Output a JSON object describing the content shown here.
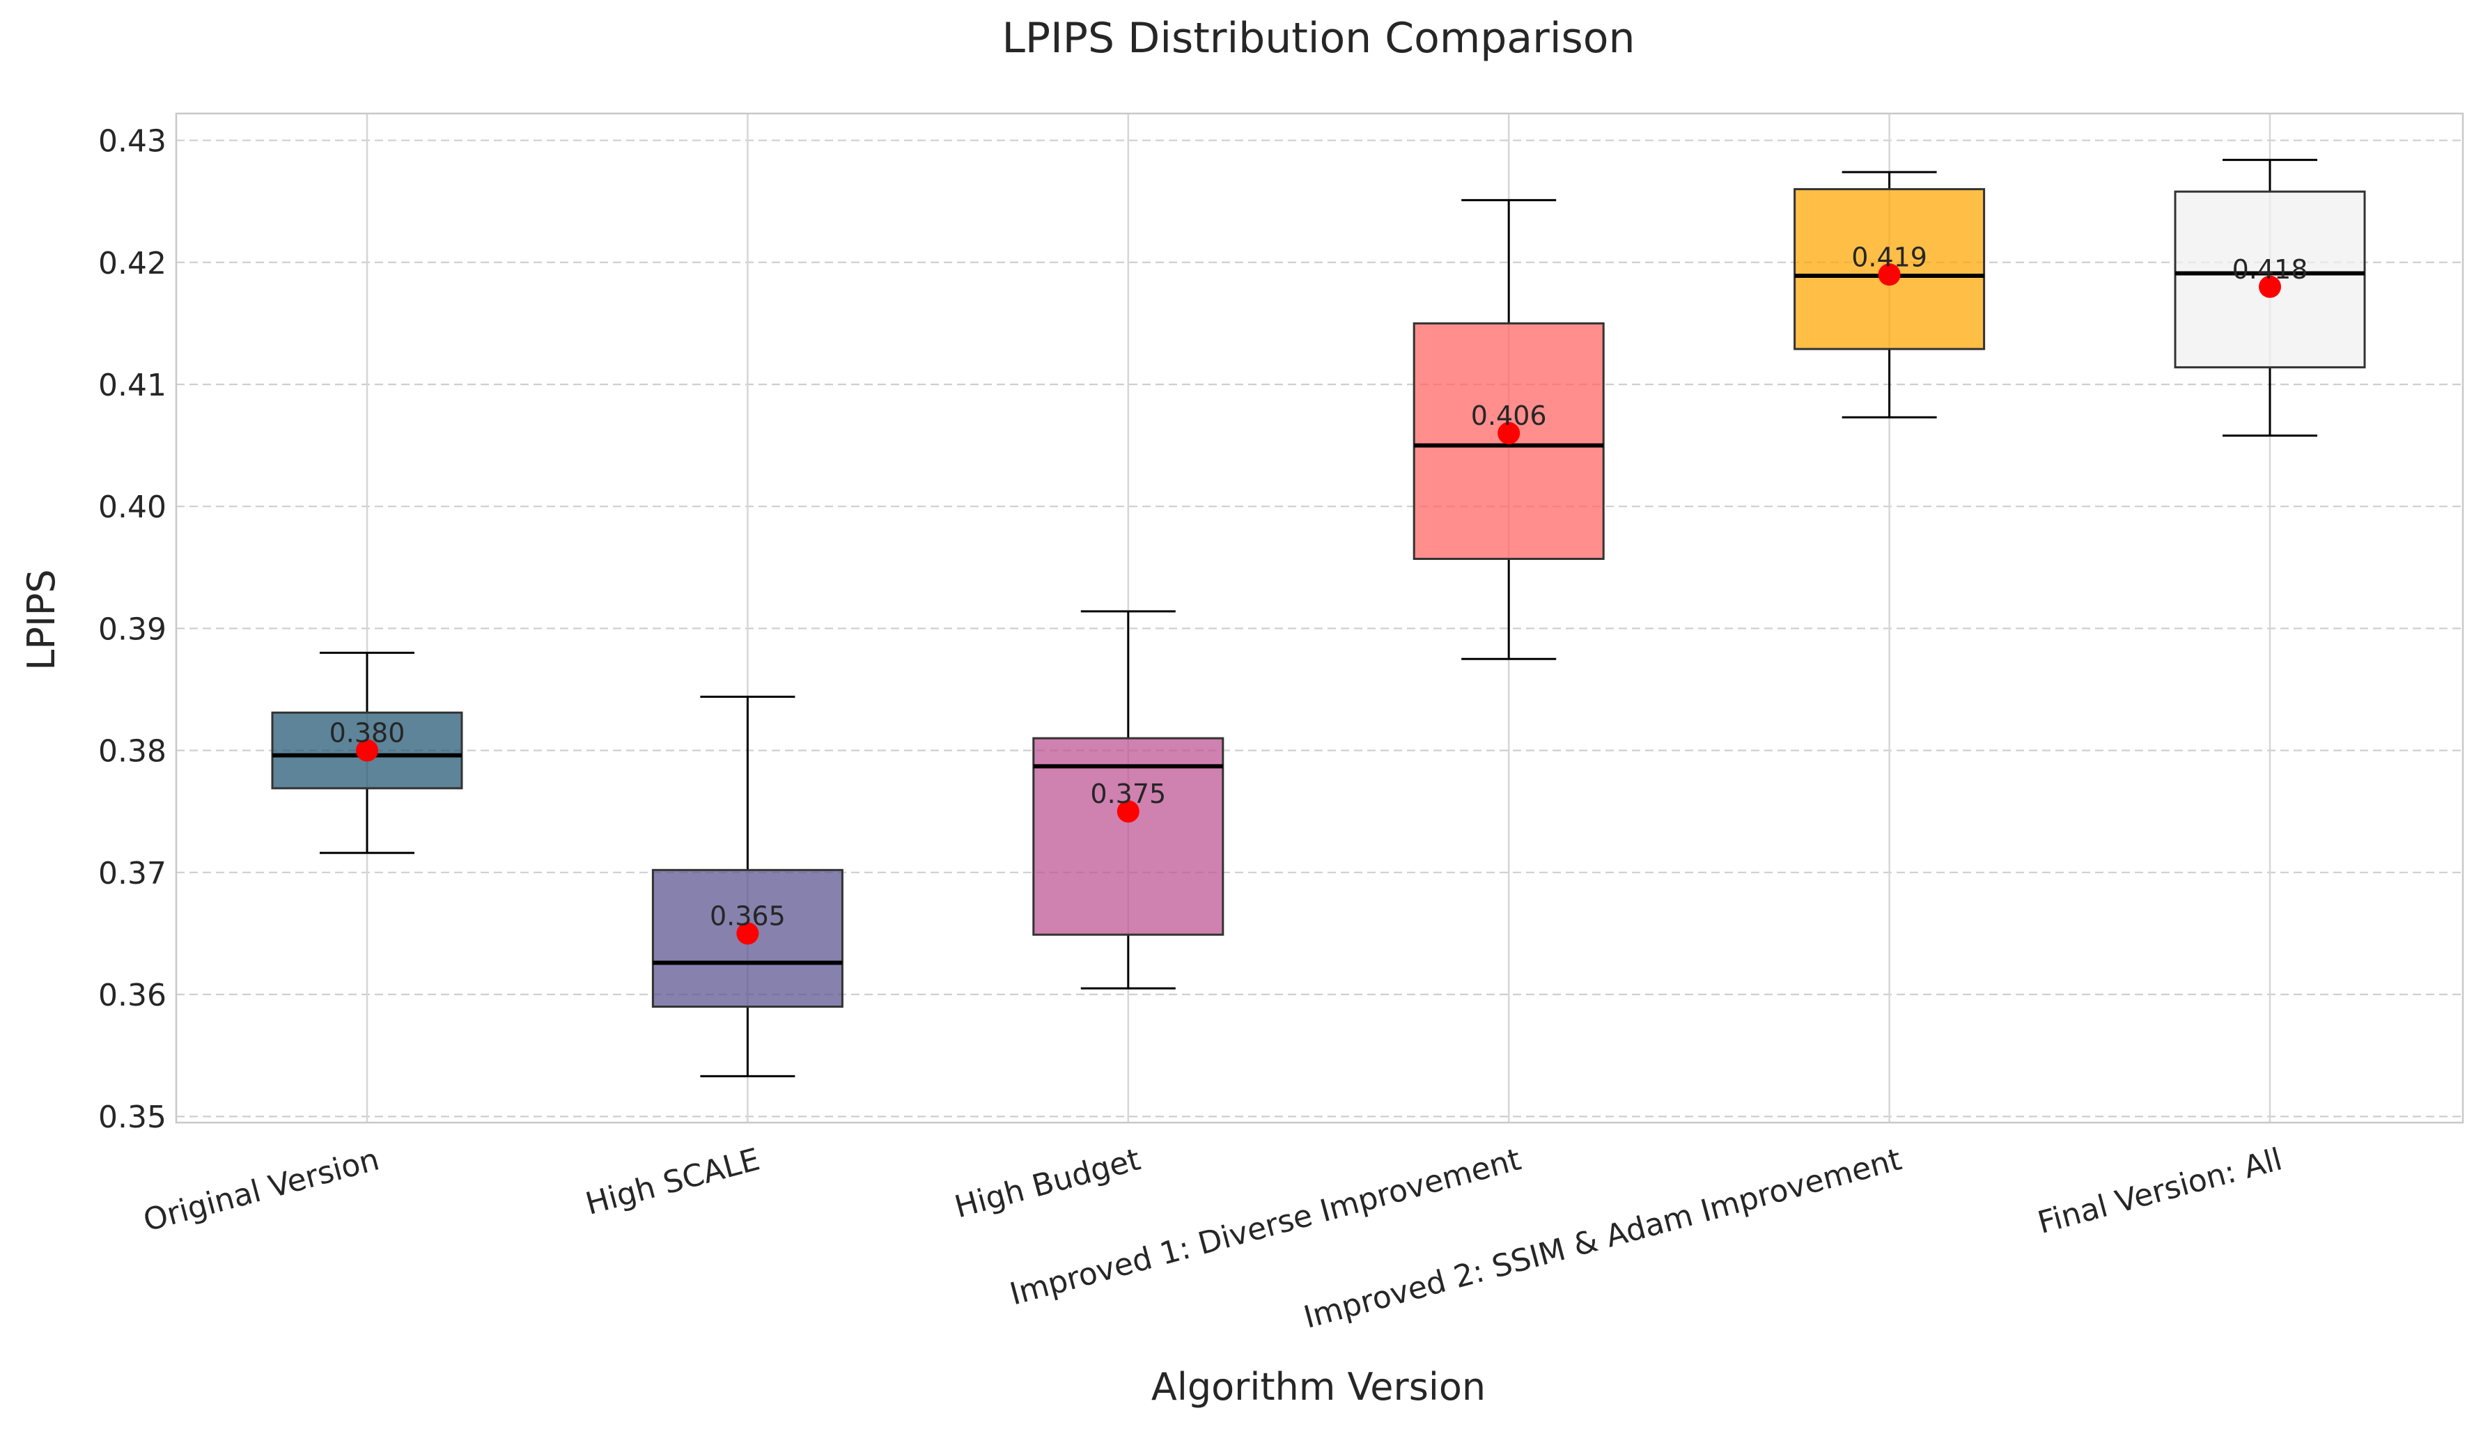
{
  "chart_data": {
    "type": "box",
    "title": "LPIPS Distribution Comparison",
    "xlabel": "Algorithm Version",
    "ylabel": "LPIPS",
    "ylim": [
      0.3495,
      0.4322
    ],
    "yticks": [
      0.35,
      0.36,
      0.37,
      0.38,
      0.39,
      0.4,
      0.41,
      0.42,
      0.43
    ],
    "ytick_labels": [
      "0.35",
      "0.36",
      "0.37",
      "0.38",
      "0.39",
      "0.40",
      "0.41",
      "0.42",
      "0.43"
    ],
    "grid": true,
    "categories": [
      "Original Version",
      "High SCALE",
      "High Budget",
      "Improved 1: Diverse Improvement",
      "Improved 2: SSIM & Adam Improvement",
      "Final Version: All"
    ],
    "boxes": [
      {
        "whisker_low": 0.3716,
        "q1": 0.3769,
        "median": 0.3796,
        "q3": 0.3831,
        "whisker_high": 0.388,
        "mean": 0.38,
        "mean_label": "0.380",
        "color": "#1f5570"
      },
      {
        "whisker_low": 0.3533,
        "q1": 0.359,
        "median": 0.3626,
        "q3": 0.3702,
        "whisker_high": 0.3844,
        "mean": 0.365,
        "mean_label": "0.365",
        "color": "#57508e"
      },
      {
        "whisker_low": 0.3605,
        "q1": 0.3649,
        "median": 0.3787,
        "q3": 0.381,
        "whisker_high": 0.3914,
        "mean": 0.375,
        "mean_label": "0.375",
        "color": "#bc5090"
      },
      {
        "whisker_low": 0.3875,
        "q1": 0.3957,
        "median": 0.405,
        "q3": 0.415,
        "whisker_high": 0.4251,
        "mean": 0.406,
        "mean_label": "0.406",
        "color": "#ff6361"
      },
      {
        "whisker_low": 0.4073,
        "q1": 0.4129,
        "median": 0.4189,
        "q3": 0.426,
        "whisker_high": 0.4274,
        "mean": 0.419,
        "mean_label": "0.419",
        "color": "#ffa600"
      },
      {
        "whisker_low": 0.4058,
        "q1": 0.4114,
        "median": 0.4191,
        "q3": 0.4258,
        "whisker_high": 0.4284,
        "mean": 0.418,
        "mean_label": "0.418",
        "color": "#f0f0f0"
      }
    ],
    "mean_marker_color": "#ff0000"
  }
}
